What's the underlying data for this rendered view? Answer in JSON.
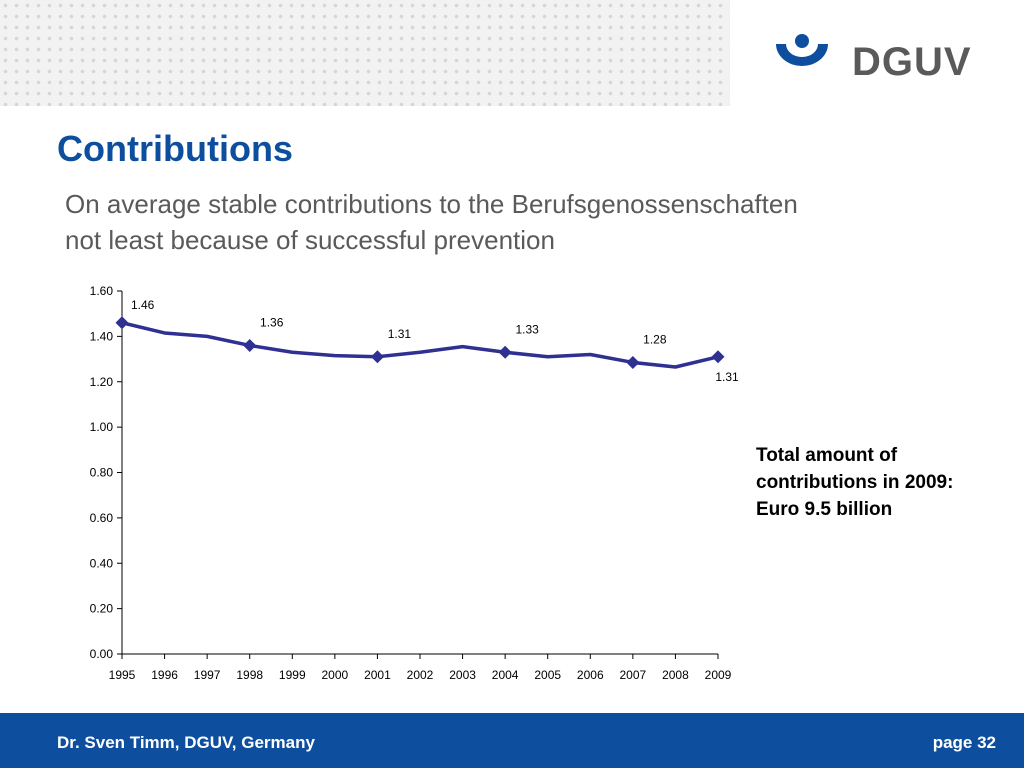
{
  "brand": {
    "name": "DGUV",
    "color": "#0d4f9e"
  },
  "slide": {
    "title": "Contributions",
    "subtitle_line1": "On average stable contributions to the Berufsgenossenschaften",
    "subtitle_line2": "not least because of successful prevention",
    "side_note": [
      "Total amount of",
      "contributions in 2009:",
      "Euro 9.5 billion"
    ]
  },
  "footer": {
    "author": "Dr. Sven Timm, DGUV, Germany",
    "page": "page 32"
  },
  "chart_data": {
    "type": "line",
    "categories": [
      "1995",
      "1996",
      "1997",
      "1998",
      "1999",
      "2000",
      "2001",
      "2002",
      "2003",
      "2004",
      "2005",
      "2006",
      "2007",
      "2008",
      "2009"
    ],
    "values": [
      1.46,
      1.415,
      1.4,
      1.36,
      1.33,
      1.315,
      1.31,
      1.33,
      1.355,
      1.33,
      1.31,
      1.32,
      1.285,
      1.265,
      1.31
    ],
    "data_labels": [
      {
        "index": 0,
        "text": "1.46"
      },
      {
        "index": 3,
        "text": "1.36"
      },
      {
        "index": 6,
        "text": "1.31"
      },
      {
        "index": 9,
        "text": "1.33"
      },
      {
        "index": 12,
        "text": "1.28"
      },
      {
        "index": 14,
        "text": "1.31"
      }
    ],
    "yticks": [
      "0.00",
      "0.20",
      "0.40",
      "0.60",
      "0.80",
      "1.00",
      "1.20",
      "1.40",
      "1.60"
    ],
    "ylim": [
      0,
      1.6
    ],
    "grid": false,
    "legend": "none",
    "line_color": "#2e3192"
  }
}
